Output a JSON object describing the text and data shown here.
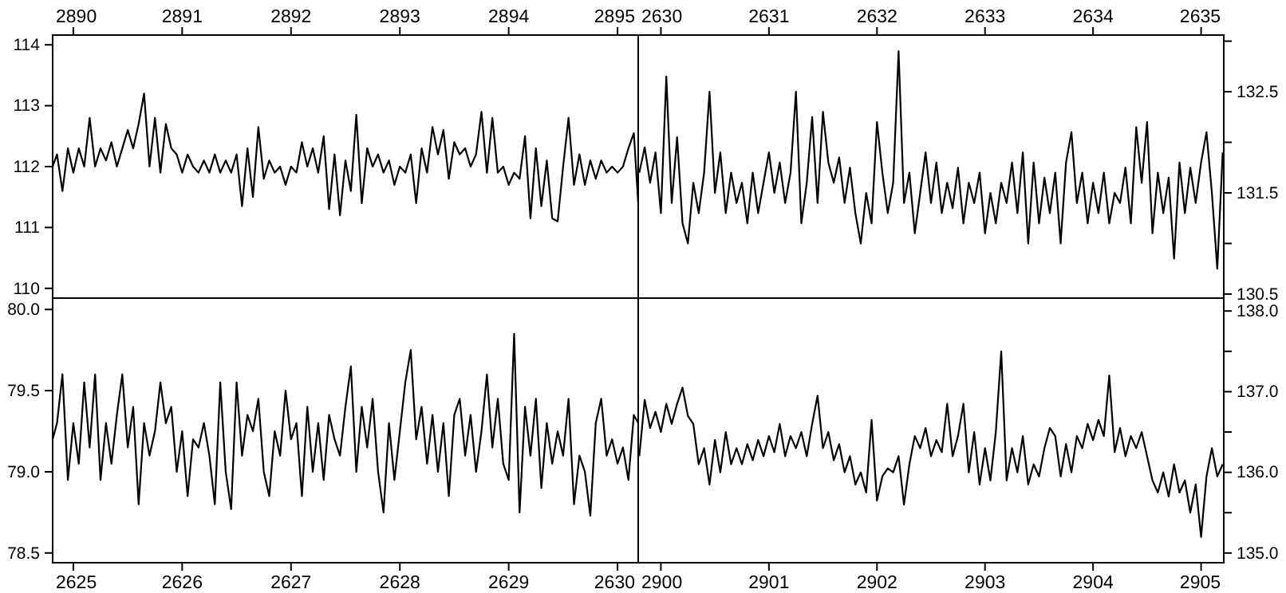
{
  "chart_data": [
    {
      "type": "line",
      "color": "#000000",
      "xlim": [
        2889.81,
        2895.19
      ],
      "xticks": [
        2890,
        2891,
        2892,
        2893,
        2894,
        2895
      ],
      "ylim": [
        109.84,
        114.16
      ],
      "yticks": [
        110,
        111,
        112,
        113,
        114
      ],
      "x": [
        2889.81,
        2889.85,
        2889.9,
        2889.95,
        2890,
        2890.05,
        2890.1,
        2890.15,
        2890.2,
        2890.25,
        2890.3,
        2890.35,
        2890.4,
        2890.45,
        2890.5,
        2890.55,
        2890.6,
        2890.65,
        2890.7,
        2890.75,
        2890.8,
        2890.85,
        2890.9,
        2890.95,
        2891,
        2891.05,
        2891.1,
        2891.15,
        2891.2,
        2891.25,
        2891.3,
        2891.35,
        2891.4,
        2891.45,
        2891.5,
        2891.55,
        2891.6,
        2891.65,
        2891.7,
        2891.75,
        2891.8,
        2891.85,
        2891.9,
        2891.95,
        2892,
        2892.05,
        2892.1,
        2892.15,
        2892.2,
        2892.25,
        2892.3,
        2892.35,
        2892.4,
        2892.45,
        2892.5,
        2892.55,
        2892.6,
        2892.65,
        2892.7,
        2892.75,
        2892.8,
        2892.85,
        2892.9,
        2892.95,
        2893,
        2893.05,
        2893.1,
        2893.15,
        2893.2,
        2893.25,
        2893.3,
        2893.35,
        2893.4,
        2893.45,
        2893.5,
        2893.55,
        2893.6,
        2893.65,
        2893.7,
        2893.75,
        2893.8,
        2893.85,
        2893.9,
        2893.95,
        2894,
        2894.05,
        2894.1,
        2894.15,
        2894.2,
        2894.25,
        2894.3,
        2894.35,
        2894.4,
        2894.45,
        2894.5,
        2894.55,
        2894.6,
        2894.65,
        2894.7,
        2894.75,
        2894.8,
        2894.85,
        2894.9,
        2894.95,
        2895,
        2895.05,
        2895.1,
        2895.15,
        2895.19
      ],
      "values": [
        112.0,
        112.2,
        111.6,
        112.3,
        111.9,
        112.3,
        112.0,
        112.8,
        112.0,
        112.3,
        112.1,
        112.4,
        112.0,
        112.3,
        112.6,
        112.3,
        112.7,
        113.2,
        112.0,
        112.8,
        111.9,
        112.7,
        112.3,
        112.2,
        111.9,
        112.2,
        112.0,
        111.9,
        112.1,
        111.9,
        112.2,
        111.9,
        112.1,
        111.9,
        112.2,
        111.35,
        112.3,
        111.5,
        112.65,
        111.8,
        112.1,
        111.9,
        112.0,
        111.7,
        112.0,
        111.9,
        112.4,
        112.0,
        112.3,
        111.9,
        112.5,
        111.3,
        112.2,
        111.2,
        112.1,
        111.6,
        112.85,
        111.4,
        112.3,
        112.0,
        112.2,
        111.9,
        112.1,
        111.7,
        112.0,
        111.9,
        112.2,
        111.4,
        112.3,
        111.9,
        112.65,
        112.2,
        112.6,
        111.8,
        112.4,
        112.2,
        112.3,
        112.0,
        112.2,
        112.9,
        111.9,
        112.8,
        111.9,
        112.0,
        111.7,
        111.9,
        111.8,
        112.5,
        111.15,
        112.3,
        111.35,
        112.1,
        111.15,
        111.1,
        112.0,
        112.8,
        111.7,
        112.2,
        111.7,
        112.1,
        111.8,
        112.1,
        111.9,
        112.0,
        111.9,
        112.0,
        112.3,
        112.55,
        111.4
      ]
    },
    {
      "type": "line",
      "color": "#000000",
      "xlim": [
        2629.79,
        2635.21
      ],
      "xticks": [
        2630,
        2631,
        2632,
        2633,
        2634,
        2635
      ],
      "ylim": [
        130.46,
        133.06
      ],
      "yticks": [
        130.5,
        {
          "value": 131,
          "label": null
        },
        131.5,
        {
          "value": 132,
          "label": null
        },
        132.5,
        {
          "value": 133,
          "label": null
        }
      ],
      "x": [
        2629.8,
        2629.85,
        2629.9,
        2629.95,
        2630,
        2630.05,
        2630.1,
        2630.15,
        2630.2,
        2630.25,
        2630.3,
        2630.35,
        2630.4,
        2630.45,
        2630.5,
        2630.55,
        2630.6,
        2630.65,
        2630.7,
        2630.75,
        2630.8,
        2630.85,
        2630.9,
        2630.95,
        2631,
        2631.05,
        2631.1,
        2631.15,
        2631.2,
        2631.25,
        2631.3,
        2631.35,
        2631.4,
        2631.45,
        2631.5,
        2631.55,
        2631.6,
        2631.65,
        2631.7,
        2631.75,
        2631.8,
        2631.85,
        2631.9,
        2631.95,
        2632,
        2632.05,
        2632.1,
        2632.15,
        2632.2,
        2632.25,
        2632.3,
        2632.35,
        2632.4,
        2632.45,
        2632.5,
        2632.55,
        2632.6,
        2632.65,
        2632.7,
        2632.75,
        2632.8,
        2632.85,
        2632.9,
        2632.95,
        2633,
        2633.05,
        2633.1,
        2633.15,
        2633.2,
        2633.25,
        2633.3,
        2633.35,
        2633.4,
        2633.45,
        2633.5,
        2633.55,
        2633.6,
        2633.65,
        2633.7,
        2633.75,
        2633.8,
        2633.85,
        2633.9,
        2633.95,
        2634,
        2634.05,
        2634.1,
        2634.15,
        2634.2,
        2634.25,
        2634.3,
        2634.35,
        2634.4,
        2634.45,
        2634.5,
        2634.55,
        2634.6,
        2634.65,
        2634.7,
        2634.75,
        2634.8,
        2634.85,
        2634.9,
        2634.95,
        2635,
        2635.05,
        2635.1,
        2635.15,
        2635.2
      ],
      "values": [
        131.7,
        131.95,
        131.6,
        131.9,
        131.3,
        132.65,
        131.4,
        132.05,
        131.2,
        131.0,
        131.6,
        131.3,
        131.7,
        132.5,
        131.5,
        131.9,
        131.3,
        131.7,
        131.4,
        131.6,
        131.2,
        131.7,
        131.3,
        131.6,
        131.9,
        131.5,
        131.8,
        131.4,
        131.7,
        132.5,
        131.2,
        131.6,
        132.25,
        131.4,
        132.3,
        131.8,
        131.6,
        131.85,
        131.4,
        131.75,
        131.3,
        131.0,
        131.5,
        131.2,
        132.2,
        131.7,
        131.3,
        131.6,
        132.9,
        131.4,
        131.7,
        131.1,
        131.5,
        131.9,
        131.4,
        131.8,
        131.3,
        131.6,
        131.35,
        131.75,
        131.2,
        131.6,
        131.4,
        131.7,
        131.1,
        131.5,
        131.2,
        131.6,
        131.4,
        131.8,
        131.3,
        131.9,
        131.0,
        131.8,
        131.2,
        131.65,
        131.3,
        131.7,
        131.0,
        131.8,
        132.1,
        131.4,
        131.7,
        131.2,
        131.6,
        131.3,
        131.7,
        131.2,
        131.5,
        131.4,
        131.75,
        131.2,
        132.15,
        131.6,
        132.2,
        131.1,
        131.7,
        131.3,
        131.65,
        130.85,
        131.8,
        131.3,
        131.75,
        131.4,
        131.8,
        132.1,
        131.5,
        130.75,
        131.9
      ]
    },
    {
      "type": "line",
      "color": "#000000",
      "xlim": [
        2624.81,
        2630.19
      ],
      "xticks": [
        2625,
        2626,
        2627,
        2628,
        2629,
        2630
      ],
      "ylim": [
        78.44,
        80.07
      ],
      "yticks": [
        {
          "value": 78.5,
          "label": "78.5"
        },
        {
          "value": 79,
          "label": "79.0"
        },
        {
          "value": 79.5,
          "label": "79.5"
        },
        {
          "value": 80,
          "label": "80.0"
        }
      ],
      "x": [
        2624.81,
        2624.85,
        2624.9,
        2624.95,
        2625,
        2625.05,
        2625.1,
        2625.15,
        2625.2,
        2625.25,
        2625.3,
        2625.35,
        2625.4,
        2625.45,
        2625.5,
        2625.55,
        2625.6,
        2625.65,
        2625.7,
        2625.75,
        2625.8,
        2625.85,
        2625.9,
        2625.95,
        2626,
        2626.05,
        2626.1,
        2626.15,
        2626.2,
        2626.25,
        2626.3,
        2626.35,
        2626.4,
        2626.45,
        2626.5,
        2626.55,
        2626.6,
        2626.65,
        2626.7,
        2626.75,
        2626.8,
        2626.85,
        2626.9,
        2626.95,
        2627,
        2627.05,
        2627.1,
        2627.15,
        2627.2,
        2627.25,
        2627.3,
        2627.35,
        2627.4,
        2627.45,
        2627.5,
        2627.55,
        2627.6,
        2627.65,
        2627.7,
        2627.75,
        2627.8,
        2627.85,
        2627.9,
        2627.95,
        2628,
        2628.05,
        2628.1,
        2628.15,
        2628.2,
        2628.25,
        2628.3,
        2628.35,
        2628.4,
        2628.45,
        2628.5,
        2628.55,
        2628.6,
        2628.65,
        2628.7,
        2628.75,
        2628.8,
        2628.85,
        2628.9,
        2628.95,
        2629,
        2629.05,
        2629.1,
        2629.15,
        2629.2,
        2629.25,
        2629.3,
        2629.35,
        2629.4,
        2629.45,
        2629.5,
        2629.55,
        2629.6,
        2629.65,
        2629.7,
        2629.75,
        2629.8,
        2629.85,
        2629.9,
        2629.95,
        2630,
        2630.05,
        2630.1,
        2630.15,
        2630.19
      ],
      "values": [
        79.2,
        79.3,
        79.6,
        78.95,
        79.3,
        79.05,
        79.55,
        79.15,
        79.6,
        78.95,
        79.3,
        79.05,
        79.35,
        79.6,
        79.15,
        79.4,
        78.8,
        79.3,
        79.1,
        79.25,
        79.55,
        79.3,
        79.4,
        79.0,
        79.25,
        78.85,
        79.2,
        79.15,
        79.3,
        79.1,
        78.8,
        79.55,
        79.0,
        78.77,
        79.55,
        79.1,
        79.35,
        79.25,
        79.45,
        79.0,
        78.85,
        79.25,
        79.1,
        79.5,
        79.2,
        79.3,
        78.85,
        79.4,
        79.0,
        79.3,
        78.95,
        79.35,
        79.2,
        79.1,
        79.4,
        79.65,
        79.0,
        79.4,
        79.15,
        79.45,
        79.0,
        78.75,
        79.3,
        78.95,
        79.25,
        79.55,
        79.75,
        79.2,
        79.4,
        79.05,
        79.35,
        79.0,
        79.3,
        78.85,
        79.35,
        79.45,
        79.1,
        79.35,
        79.0,
        79.25,
        79.6,
        79.15,
        79.45,
        79.05,
        78.95,
        79.85,
        78.75,
        79.4,
        79.1,
        79.45,
        78.9,
        79.3,
        79.05,
        79.25,
        79.1,
        79.45,
        78.8,
        79.1,
        79.0,
        78.73,
        79.3,
        79.45,
        79.1,
        79.2,
        79.05,
        79.15,
        78.95,
        79.35,
        79.3
      ]
    },
    {
      "type": "line",
      "color": "#000000",
      "xlim": [
        2899.79,
        2905.21
      ],
      "xticks": [
        2900,
        2901,
        2902,
        2903,
        2904,
        2905
      ],
      "ylim": [
        134.88,
        138.16
      ],
      "yticks": [
        {
          "value": 135,
          "label": "135.0"
        },
        {
          "value": 135.5,
          "label": null
        },
        {
          "value": 136,
          "label": "136.0"
        },
        {
          "value": 136.5,
          "label": null
        },
        {
          "value": 137,
          "label": "137.0"
        },
        {
          "value": 137.5,
          "label": null
        },
        {
          "value": 138,
          "label": "138.0"
        }
      ],
      "x": [
        2899.8,
        2899.85,
        2899.9,
        2899.95,
        2900,
        2900.05,
        2900.1,
        2900.15,
        2900.2,
        2900.25,
        2900.3,
        2900.35,
        2900.4,
        2900.45,
        2900.5,
        2900.55,
        2900.6,
        2900.65,
        2900.7,
        2900.75,
        2900.8,
        2900.85,
        2900.9,
        2900.95,
        2901,
        2901.05,
        2901.1,
        2901.15,
        2901.2,
        2901.25,
        2901.3,
        2901.35,
        2901.4,
        2901.45,
        2901.5,
        2901.55,
        2901.6,
        2901.65,
        2901.7,
        2901.75,
        2901.8,
        2901.85,
        2901.9,
        2901.95,
        2902,
        2902.05,
        2902.1,
        2902.15,
        2902.2,
        2902.25,
        2902.3,
        2902.35,
        2902.4,
        2902.45,
        2902.5,
        2902.55,
        2902.6,
        2902.65,
        2902.7,
        2902.75,
        2902.8,
        2902.85,
        2902.9,
        2902.95,
        2903,
        2903.05,
        2903.1,
        2903.15,
        2903.2,
        2903.25,
        2903.3,
        2903.35,
        2903.4,
        2903.45,
        2903.5,
        2903.55,
        2903.6,
        2903.65,
        2903.7,
        2903.75,
        2903.8,
        2903.85,
        2903.9,
        2903.95,
        2904,
        2904.05,
        2904.1,
        2904.15,
        2904.2,
        2904.25,
        2904.3,
        2904.35,
        2904.4,
        2904.45,
        2904.5,
        2904.55,
        2904.6,
        2904.65,
        2904.7,
        2904.75,
        2904.8,
        2904.85,
        2904.9,
        2904.95,
        2905,
        2905.05,
        2905.1,
        2905.15,
        2905.2
      ],
      "values": [
        136.2,
        136.9,
        136.55,
        136.75,
        136.5,
        136.85,
        136.6,
        136.85,
        137.05,
        136.7,
        136.6,
        136.1,
        136.3,
        135.85,
        136.4,
        136.0,
        136.5,
        136.1,
        136.3,
        136.1,
        136.35,
        136.15,
        136.4,
        136.2,
        136.45,
        136.25,
        136.6,
        136.2,
        136.45,
        136.3,
        136.5,
        136.2,
        136.6,
        136.95,
        136.3,
        136.5,
        136.15,
        136.35,
        136.0,
        136.2,
        135.85,
        136.0,
        135.75,
        136.65,
        135.65,
        135.95,
        136.05,
        136.0,
        136.2,
        135.6,
        136.1,
        136.45,
        136.3,
        136.55,
        136.2,
        136.4,
        136.25,
        136.85,
        136.2,
        136.45,
        136.85,
        136.0,
        136.5,
        135.85,
        136.3,
        135.9,
        136.5,
        137.5,
        135.9,
        136.3,
        136.0,
        136.45,
        135.85,
        136.1,
        135.95,
        136.3,
        136.55,
        136.45,
        135.95,
        136.35,
        136.0,
        136.45,
        136.3,
        136.6,
        136.4,
        136.65,
        136.45,
        137.2,
        136.25,
        136.55,
        136.2,
        136.45,
        136.3,
        136.5,
        136.2,
        135.9,
        135.75,
        136.0,
        135.7,
        136.1,
        135.75,
        135.9,
        135.5,
        135.85,
        135.2,
        135.95,
        136.3,
        135.95,
        136.1
      ]
    }
  ]
}
